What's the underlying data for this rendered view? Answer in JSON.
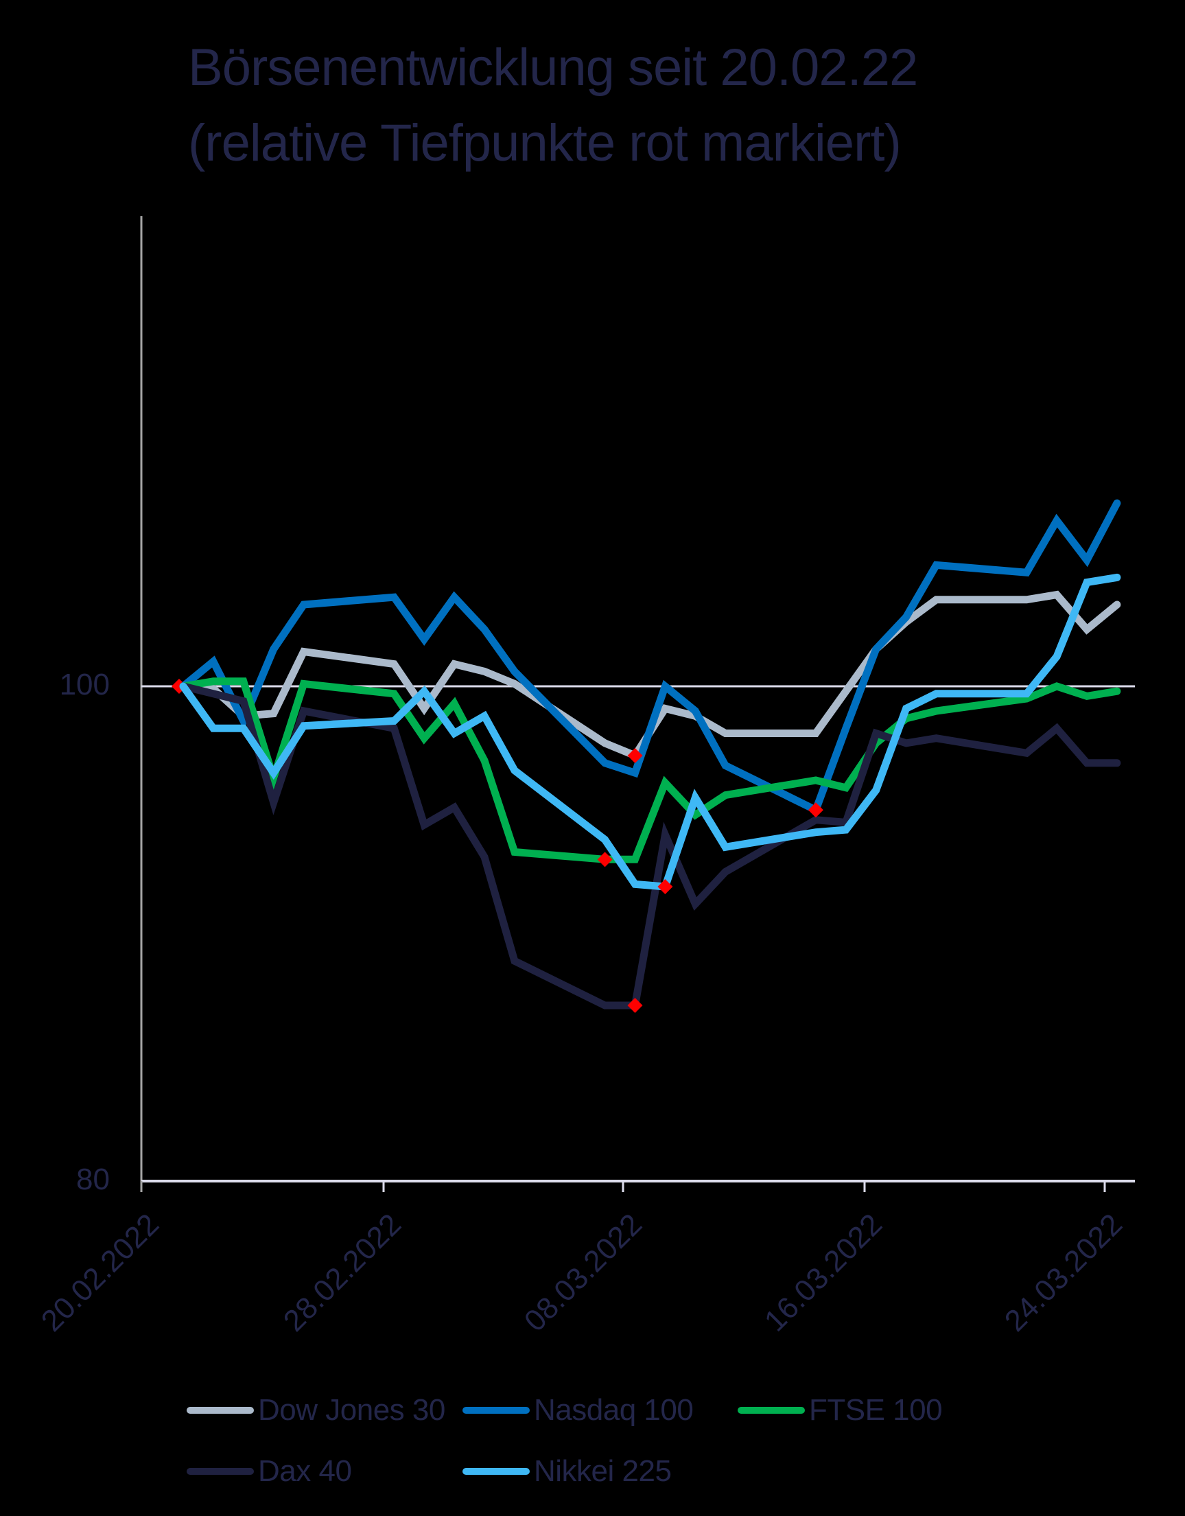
{
  "title": {
    "line1": "Börsenentwicklung seit 20.02.22",
    "line2": "(relative Tiefpunkte rot markiert)"
  },
  "colors": {
    "background": "#000000",
    "text": "#23264a",
    "axis": "#a6a6a6",
    "gridline": "#dcdcec",
    "low_marker": "#ff0000"
  },
  "chart_data": {
    "type": "line",
    "title": "Börsenentwicklung seit 20.02.22 (relative Tiefpunkte rot markiert)",
    "xlabel": "",
    "ylabel": "",
    "ylim": [
      80,
      120
    ],
    "y_ticks": [
      80,
      100
    ],
    "x_tick_labels": [
      "20.02.2022",
      "28.02.2022",
      "08.03.2022",
      "16.03.2022",
      "24.03.2022"
    ],
    "grid": "horizontal line at 100",
    "legend_position": "bottom",
    "x": [
      "21.02.2022",
      "22.02.2022",
      "23.02.2022",
      "24.02.2022",
      "25.02.2022",
      "28.02.2022",
      "01.03.2022",
      "02.03.2022",
      "03.03.2022",
      "04.03.2022",
      "07.03.2022",
      "08.03.2022",
      "09.03.2022",
      "10.03.2022",
      "11.03.2022",
      "14.03.2022",
      "15.03.2022",
      "16.03.2022",
      "17.03.2022",
      "18.03.2022",
      "21.03.2022",
      "22.03.2022",
      "23.03.2022",
      "24.03.2022"
    ],
    "x_day_offsets": [
      0,
      1,
      2,
      3,
      4,
      7,
      8,
      9,
      10,
      11,
      14,
      15,
      16,
      17,
      18,
      21,
      22,
      23,
      24,
      25,
      28,
      29,
      30,
      31
    ],
    "series": [
      {
        "name": "Dow Jones 30",
        "color": "#abbacb",
        "values": [
          100,
          99.9,
          98.8,
          98.9,
          101.4,
          100.9,
          99.1,
          100.9,
          100.6,
          100.1,
          97.7,
          97.2,
          99.1,
          98.8,
          98.1,
          98.1,
          99.8,
          101.5,
          102.6,
          103.5,
          103.5,
          103.7,
          102.3,
          103.3
        ],
        "low_index": 11
      },
      {
        "name": "Nasdaq 100",
        "color": "#0070c0",
        "values": [
          100,
          101.0,
          98.6,
          101.5,
          103.3,
          103.6,
          101.9,
          103.6,
          102.3,
          100.6,
          96.9,
          96.5,
          100.0,
          99.0,
          96.8,
          95.0,
          98.3,
          101.5,
          102.8,
          104.9,
          104.6,
          106.7,
          105.1,
          107.4
        ],
        "low_index": 15
      },
      {
        "name": "FTSE 100",
        "color": "#00b050",
        "values": [
          100,
          100.2,
          100.2,
          96.3,
          100.1,
          99.7,
          97.9,
          99.3,
          97.0,
          93.3,
          93.0,
          93.0,
          96.1,
          94.8,
          95.6,
          96.2,
          95.9,
          97.7,
          98.7,
          99.0,
          99.5,
          100.0,
          99.6,
          99.8
        ],
        "low_index": 10
      },
      {
        "name": "Dax 40",
        "color": "#1f2140",
        "values": [
          100,
          99.7,
          99.4,
          95.3,
          99.0,
          98.3,
          94.4,
          95.1,
          93.1,
          88.9,
          87.1,
          87.1,
          94.0,
          91.2,
          92.5,
          94.6,
          94.5,
          98.1,
          97.7,
          97.9,
          97.3,
          98.3,
          96.9,
          96.9
        ],
        "low_index": 11
      },
      {
        "name": "Nikkei 225",
        "color": "#3fb8f5",
        "values": [
          100,
          98.3,
          98.3,
          96.5,
          98.4,
          98.6,
          99.8,
          98.1,
          98.8,
          96.6,
          93.8,
          92.0,
          91.9,
          95.5,
          93.5,
          94.1,
          94.2,
          95.8,
          99.1,
          99.7,
          99.7,
          101.2,
          104.2,
          104.4
        ],
        "low_index": 12
      }
    ],
    "start_marker": {
      "index": 0,
      "value": 100
    }
  },
  "axis": {
    "y_labels": [
      "100",
      "80"
    ],
    "x_labels": [
      "20.02.2022",
      "28.02.2022",
      "08.03.2022",
      "16.03.2022",
      "24.03.2022"
    ]
  },
  "legend": [
    {
      "label": "Dow Jones 30",
      "color": "#abbacb"
    },
    {
      "label": "Nasdaq 100",
      "color": "#0070c0"
    },
    {
      "label": "FTSE 100",
      "color": "#00b050"
    },
    {
      "label": "Dax 40",
      "color": "#1f2140"
    },
    {
      "label": "Nikkei 225",
      "color": "#3fb8f5"
    }
  ]
}
